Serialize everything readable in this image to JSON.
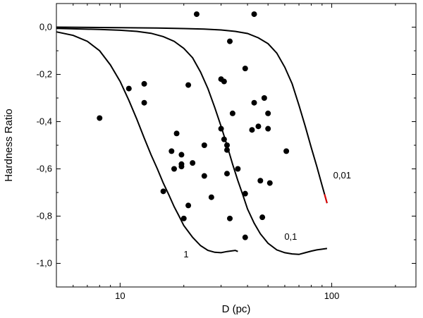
{
  "chart_data": {
    "type": "scatter",
    "xlabel": "D (pc)",
    "ylabel": "Hardness Ratio",
    "xscale": "log",
    "xlim": [
      5,
      250
    ],
    "ylim": [
      -1.1,
      0.1
    ],
    "xticks": [
      {
        "value": 10,
        "label": "10"
      },
      {
        "value": 100,
        "label": "100"
      }
    ],
    "yticks": [
      {
        "value": 0.0,
        "label": "0,0"
      },
      {
        "value": -0.2,
        "label": "-0,2"
      },
      {
        "value": -0.4,
        "label": "-0,4"
      },
      {
        "value": -0.6,
        "label": "-0,6"
      },
      {
        "value": -0.8,
        "label": "-0,8"
      },
      {
        "value": -1.0,
        "label": "-1,0"
      }
    ],
    "grid": false,
    "points": [
      [
        8.0,
        -0.385
      ],
      [
        11.0,
        -0.26
      ],
      [
        13.0,
        -0.24
      ],
      [
        13.0,
        -0.32
      ],
      [
        16.0,
        -0.695
      ],
      [
        17.5,
        -0.525
      ],
      [
        18.0,
        -0.6
      ],
      [
        18.5,
        -0.45
      ],
      [
        19.5,
        -0.54
      ],
      [
        19.5,
        -0.58
      ],
      [
        19.5,
        -0.59
      ],
      [
        20.0,
        -0.81
      ],
      [
        21.0,
        -0.755
      ],
      [
        21.0,
        -0.245
      ],
      [
        22.0,
        -0.575
      ],
      [
        23.0,
        0.055
      ],
      [
        25.0,
        -0.5
      ],
      [
        25.0,
        -0.63
      ],
      [
        27.0,
        -0.72
      ],
      [
        30.0,
        -0.43
      ],
      [
        30.0,
        -0.22
      ],
      [
        31.0,
        -0.23
      ],
      [
        31.0,
        -0.475
      ],
      [
        32.0,
        -0.5
      ],
      [
        32.0,
        -0.52
      ],
      [
        32.0,
        -0.62
      ],
      [
        33.0,
        -0.06
      ],
      [
        33.0,
        -0.81
      ],
      [
        34.0,
        -0.365
      ],
      [
        36.0,
        -0.6
      ],
      [
        39.0,
        -0.175
      ],
      [
        39.0,
        -0.705
      ],
      [
        39.0,
        -0.89
      ],
      [
        42.0,
        -0.435
      ],
      [
        43.0,
        -0.32
      ],
      [
        43.0,
        0.055
      ],
      [
        45.0,
        -0.42
      ],
      [
        46.0,
        -0.65
      ],
      [
        47.0,
        -0.805
      ],
      [
        48.0,
        -0.3
      ],
      [
        50.0,
        -0.365
      ],
      [
        50.0,
        -0.43
      ],
      [
        51.0,
        -0.66
      ],
      [
        61.0,
        -0.525
      ]
    ],
    "curves": [
      {
        "label": "1",
        "points": [
          [
            5,
            -0.02
          ],
          [
            6,
            -0.035
          ],
          [
            7,
            -0.06
          ],
          [
            8,
            -0.1
          ],
          [
            9,
            -0.16
          ],
          [
            10,
            -0.23
          ],
          [
            11,
            -0.31
          ],
          [
            12,
            -0.39
          ],
          [
            13,
            -0.47
          ],
          [
            14,
            -0.54
          ],
          [
            15,
            -0.6
          ],
          [
            16,
            -0.66
          ],
          [
            17,
            -0.71
          ],
          [
            18,
            -0.76
          ],
          [
            19,
            -0.8
          ],
          [
            20,
            -0.84
          ],
          [
            22,
            -0.89
          ],
          [
            24,
            -0.925
          ],
          [
            26,
            -0.945
          ],
          [
            28,
            -0.953
          ],
          [
            30,
            -0.955
          ],
          [
            32,
            -0.95
          ],
          [
            35,
            -0.945
          ],
          [
            36,
            -0.95
          ]
        ]
      },
      {
        "label": "0,1",
        "points": [
          [
            5,
            -0.005
          ],
          [
            8,
            -0.01
          ],
          [
            10,
            -0.013
          ],
          [
            12,
            -0.018
          ],
          [
            14,
            -0.026
          ],
          [
            16,
            -0.04
          ],
          [
            18,
            -0.06
          ],
          [
            20,
            -0.09
          ],
          [
            22,
            -0.13
          ],
          [
            24,
            -0.19
          ],
          [
            26,
            -0.26
          ],
          [
            28,
            -0.34
          ],
          [
            30,
            -0.42
          ],
          [
            32,
            -0.5
          ],
          [
            34,
            -0.58
          ],
          [
            36,
            -0.65
          ],
          [
            38,
            -0.71
          ],
          [
            40,
            -0.77
          ],
          [
            43,
            -0.83
          ],
          [
            46,
            -0.875
          ],
          [
            50,
            -0.915
          ],
          [
            55,
            -0.943
          ],
          [
            60,
            -0.955
          ],
          [
            65,
            -0.96
          ],
          [
            70,
            -0.962
          ],
          [
            75,
            -0.955
          ],
          [
            80,
            -0.948
          ],
          [
            85,
            -0.943
          ],
          [
            90,
            -0.94
          ],
          [
            95,
            -0.937
          ]
        ]
      },
      {
        "label": "0,01",
        "points": [
          [
            5,
            0.0
          ],
          [
            10,
            -0.002
          ],
          [
            15,
            -0.004
          ],
          [
            20,
            -0.006
          ],
          [
            25,
            -0.008
          ],
          [
            30,
            -0.012
          ],
          [
            35,
            -0.018
          ],
          [
            40,
            -0.027
          ],
          [
            45,
            -0.045
          ],
          [
            50,
            -0.07
          ],
          [
            55,
            -0.11
          ],
          [
            60,
            -0.17
          ],
          [
            65,
            -0.24
          ],
          [
            70,
            -0.33
          ],
          [
            75,
            -0.42
          ],
          [
            80,
            -0.51
          ],
          [
            85,
            -0.59
          ],
          [
            90,
            -0.67
          ],
          [
            95,
            -0.745
          ]
        ]
      }
    ]
  }
}
